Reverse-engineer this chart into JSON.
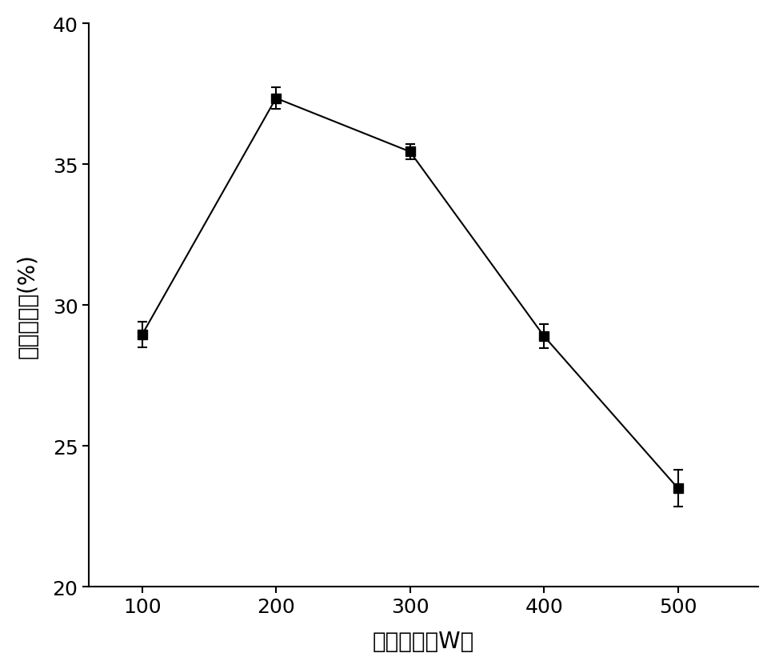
{
  "x": [
    100,
    200,
    300,
    400,
    500
  ],
  "y": [
    28.95,
    37.35,
    35.45,
    28.9,
    23.5
  ],
  "yerr": [
    0.45,
    0.38,
    0.28,
    0.42,
    0.65
  ],
  "xlabel": "微波功率（W）",
  "ylabel": "辛酸插入率(%)",
  "xlim": [
    60,
    560
  ],
  "ylim": [
    20,
    40
  ],
  "yticks": [
    20,
    25,
    30,
    35,
    40
  ],
  "xticks": [
    100,
    200,
    300,
    400,
    500
  ],
  "line_color": "#000000",
  "marker": "s",
  "marker_size": 8,
  "marker_color": "#000000",
  "line_width": 1.5,
  "label_fontsize": 20,
  "tick_fontsize": 18,
  "background_color": "#ffffff"
}
